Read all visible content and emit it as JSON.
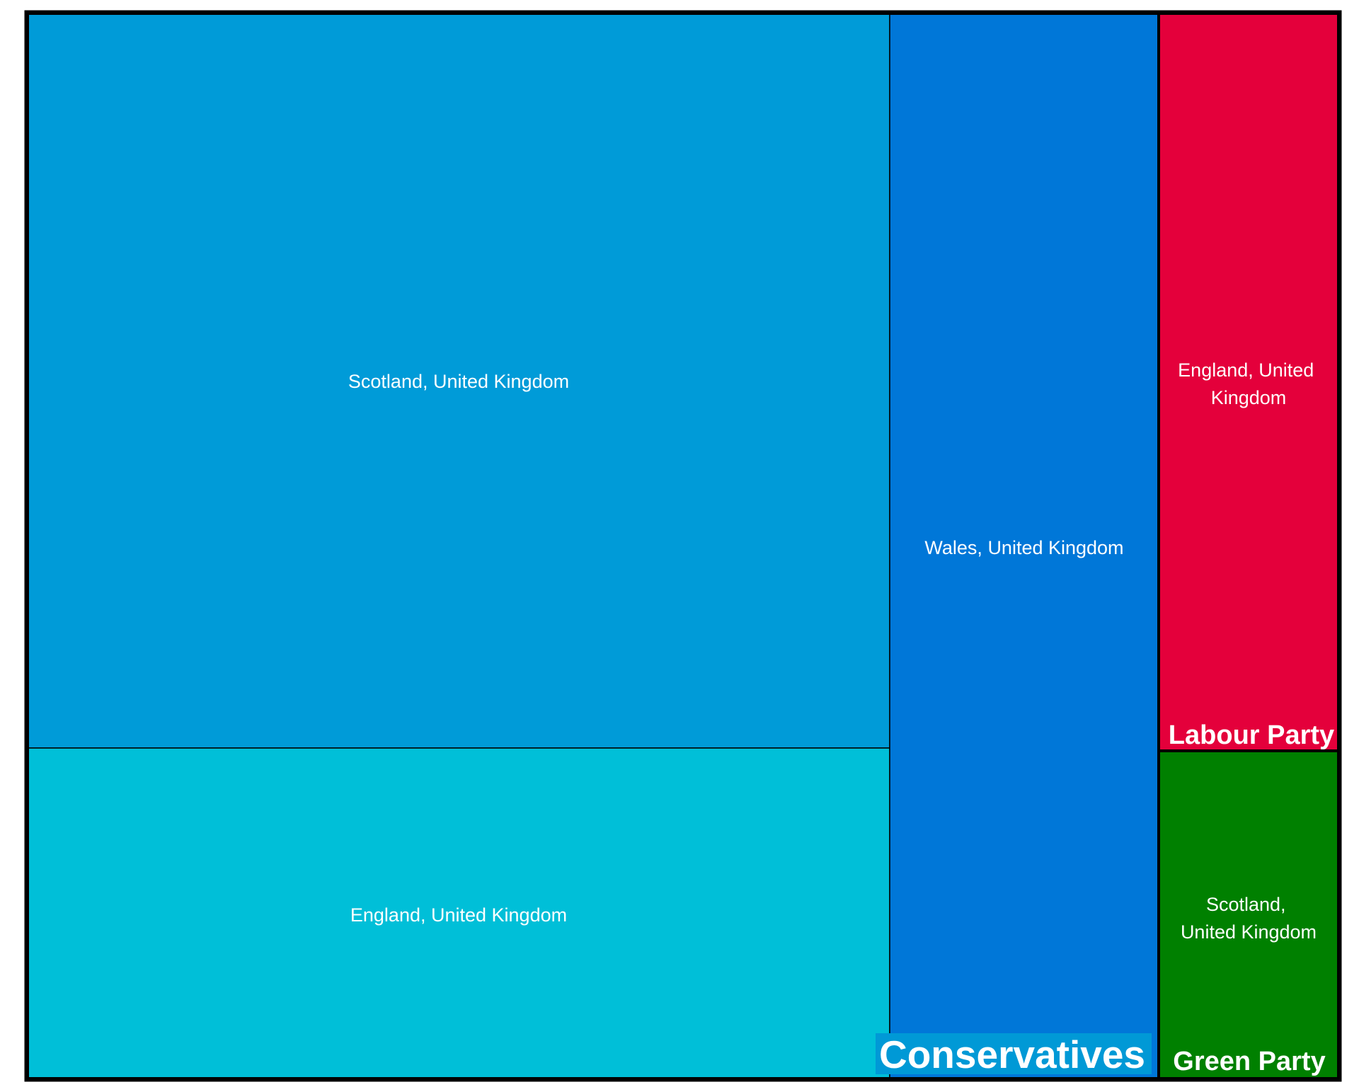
{
  "chart_data": {
    "type": "treemap",
    "groups": [
      {
        "name": "Conservatives",
        "color": "#0099d6",
        "children": [
          {
            "name": "Scotland, United Kingdom",
            "value": 36.7,
            "color": "#009bd8"
          },
          {
            "name": "England, United Kingdom",
            "value": 16.5,
            "color": "#00bfd8"
          },
          {
            "name": "Wales, United Kingdom",
            "value": 16.5,
            "color": "#0077d8"
          }
        ]
      },
      {
        "name": "Labour Party",
        "color": "#e4003b",
        "children": [
          {
            "name": "England, United Kingdom",
            "value": 6.2,
            "color": "#e4003b"
          }
        ]
      },
      {
        "name": "Green Party",
        "color": "#008000",
        "children": [
          {
            "name": "Scotland, United Kingdom",
            "value": 4.3,
            "color": "#008000"
          }
        ]
      }
    ]
  }
}
